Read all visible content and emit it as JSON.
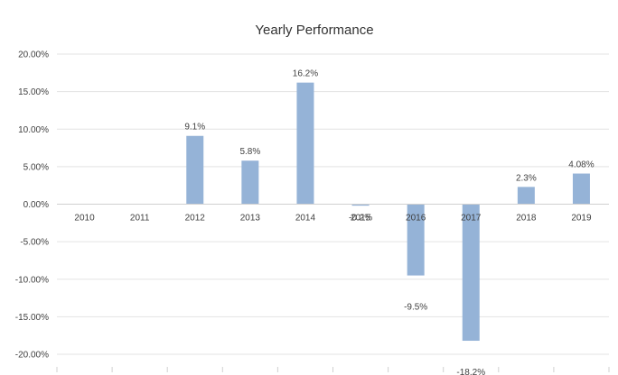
{
  "chart_data": {
    "type": "bar",
    "title": "Yearly Performance",
    "xlabel": "",
    "ylabel": "",
    "categories": [
      "2010",
      "2011",
      "2012",
      "2013",
      "2014",
      "2015",
      "2016",
      "2017",
      "2018",
      "2019"
    ],
    "values": [
      null,
      null,
      9.1,
      5.8,
      16.2,
      -0.2,
      -9.5,
      -18.2,
      2.3,
      4.08
    ],
    "data_labels": [
      "",
      "",
      "9.1%",
      "5.8%",
      "16.2%",
      "-0.2%",
      "-9.5%",
      "-18.2%",
      "2.3%",
      "4.08%"
    ],
    "ylim": [
      -20,
      20
    ],
    "yticks": [
      20,
      15,
      10,
      5,
      0,
      -5,
      -10,
      -15,
      -20
    ],
    "ytick_labels": [
      "20.00%",
      "15.00%",
      "10.00%",
      "5.00%",
      "0.00%",
      "-5.00%",
      "-10.00%",
      "-15.00%",
      "-20.00%"
    ],
    "grid": true,
    "legend": "none",
    "bar_color": "#95b3d7"
  }
}
